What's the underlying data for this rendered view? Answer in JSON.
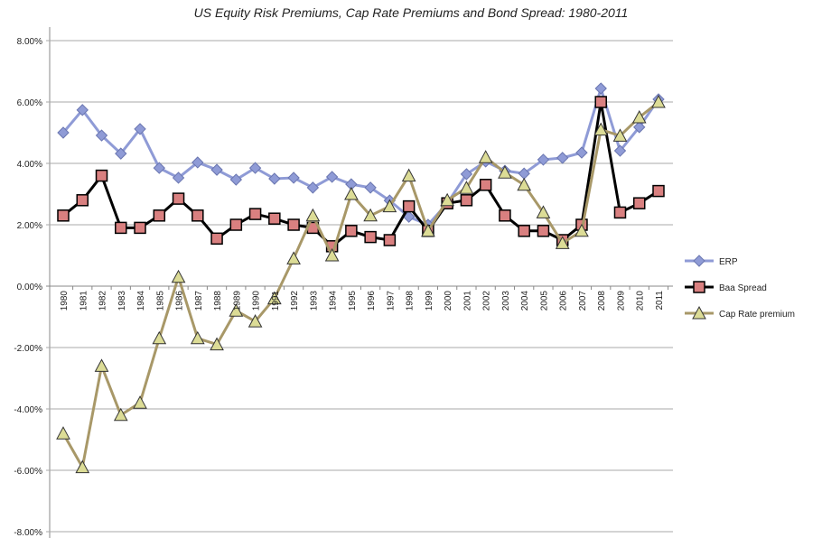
{
  "chart_data": {
    "type": "line",
    "title": "US Equity Risk Premiums, Cap Rate Premiums and Bond Spread: 1980-2011",
    "xlabel": "",
    "ylabel": "",
    "ylim": [
      -8,
      8
    ],
    "yticks": [
      "8.00%",
      "6.00%",
      "4.00%",
      "2.00%",
      "0.00%",
      "-2.00%",
      "-4.00%",
      "-6.00%",
      "-8.00%"
    ],
    "ytick_values": [
      8,
      6,
      4,
      2,
      0,
      -2,
      -4,
      -6,
      -8
    ],
    "grid": true,
    "legend_position": "right",
    "categories": [
      "1980",
      "1981",
      "1982",
      "1983",
      "1984",
      "1985",
      "1986",
      "1987",
      "1988",
      "1989",
      "1990",
      "1991",
      "1992",
      "1993",
      "1994",
      "1995",
      "1996",
      "1997",
      "1998",
      "1999",
      "2000",
      "2001",
      "2002",
      "2003",
      "2004",
      "2005",
      "2006",
      "2007",
      "2008",
      "2009",
      "2010",
      "2011"
    ],
    "series": [
      {
        "name": "ERP",
        "color": "#8f9bd6",
        "marker": "diamond",
        "values": [
          5.0,
          5.74,
          4.91,
          4.32,
          5.12,
          3.85,
          3.53,
          4.03,
          3.79,
          3.47,
          3.85,
          3.5,
          3.53,
          3.21,
          3.56,
          3.32,
          3.21,
          2.79,
          2.26,
          2.0,
          2.7,
          3.65,
          4.06,
          3.76,
          3.67,
          4.12,
          4.18,
          4.35,
          6.44,
          4.41,
          5.18,
          6.09
        ]
      },
      {
        "name": "Baa Spread",
        "color": "#000000",
        "fill": "#d98080",
        "marker": "square",
        "values": [
          2.3,
          2.8,
          3.6,
          1.9,
          1.9,
          2.3,
          2.85,
          2.3,
          1.55,
          2.0,
          2.35,
          2.2,
          2.0,
          1.9,
          1.3,
          1.8,
          1.6,
          1.5,
          2.6,
          1.8,
          2.7,
          2.8,
          3.3,
          2.3,
          1.8,
          1.8,
          1.5,
          2.0,
          6.0,
          2.4,
          2.7,
          3.1
        ]
      },
      {
        "name": "Cap Rate premium",
        "color": "#a89868",
        "fill": "#dcdc96",
        "marker": "triangle",
        "values": [
          -4.8,
          -5.9,
          -2.6,
          -4.2,
          -3.8,
          -1.7,
          0.3,
          -1.7,
          -1.9,
          -0.8,
          -1.15,
          -0.4,
          0.9,
          2.3,
          1.0,
          3.0,
          2.3,
          2.6,
          3.6,
          1.8,
          2.8,
          3.2,
          4.2,
          3.7,
          3.3,
          2.4,
          1.4,
          1.8,
          5.1,
          4.9,
          5.5,
          6.0
        ]
      }
    ]
  }
}
